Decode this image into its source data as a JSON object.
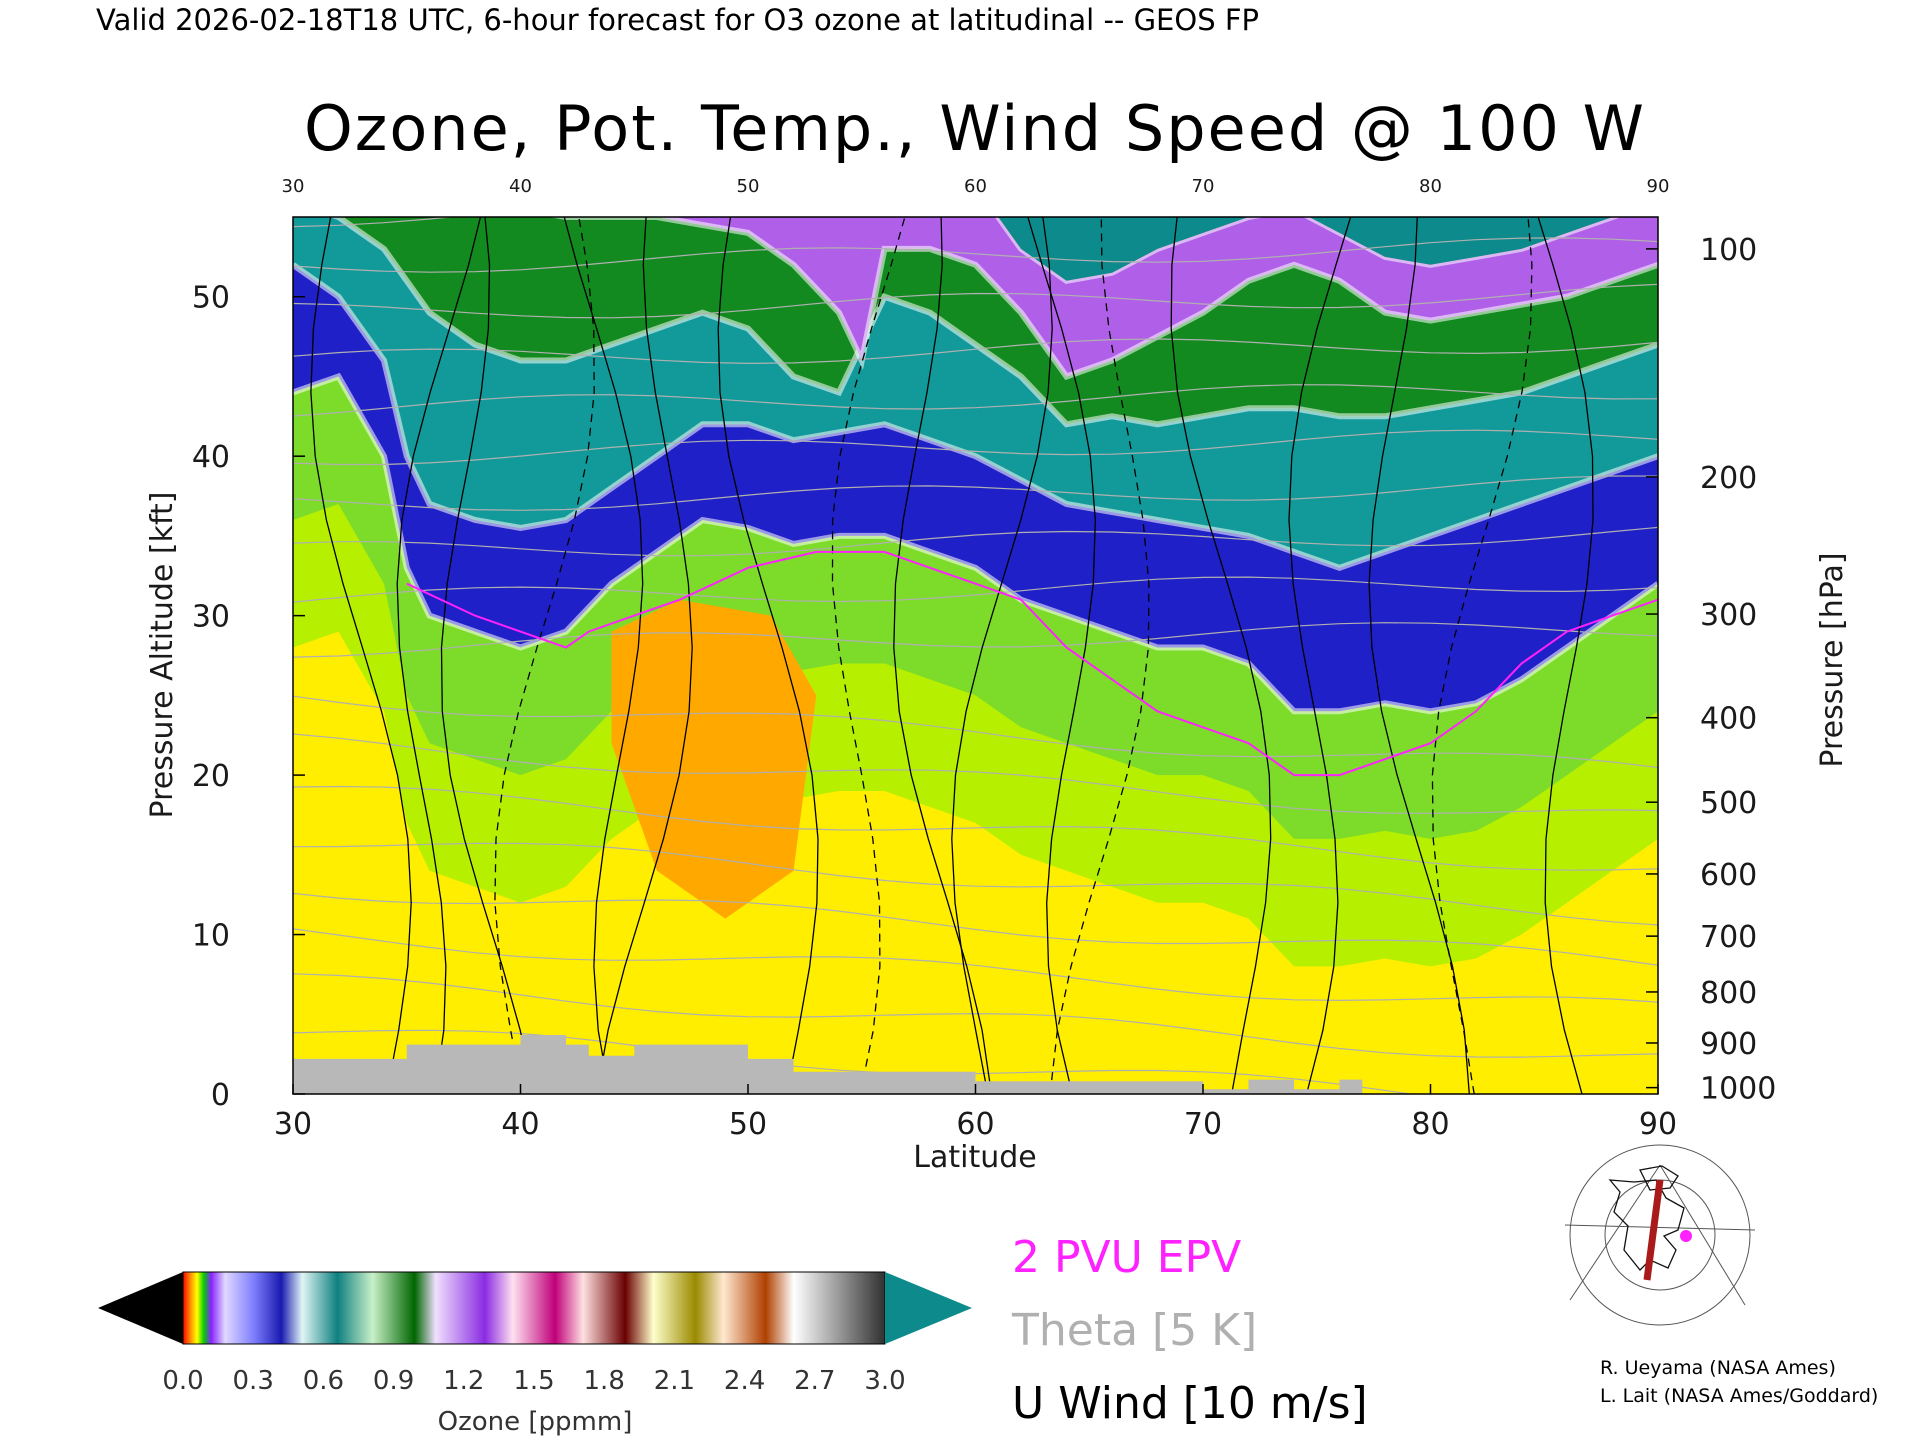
{
  "header": {
    "text": "Valid 2026-02-18T18 UTC, 6-hour forecast for O3 ozone at latitudinal -- GEOS FP"
  },
  "chart_data": {
    "type": "heatmap",
    "title": "Ozone, Pot. Temp., Wind Speed @ 100 W",
    "xlabel": "Latitude",
    "ylabel_left": "Pressure Altitude [kft]",
    "ylabel_right": "Pressure [hPa]",
    "xlim": [
      30,
      90
    ],
    "ylim": [
      0,
      55
    ],
    "x_ticks": [
      30,
      40,
      50,
      60,
      70,
      80,
      90
    ],
    "y_ticks_left": [
      0,
      10,
      20,
      30,
      40,
      50
    ],
    "y_ticks_right": [
      {
        "label": "100",
        "kft": 53.0
      },
      {
        "label": "200",
        "kft": 38.7
      },
      {
        "label": "300",
        "kft": 30.1
      },
      {
        "label": "400",
        "kft": 23.6
      },
      {
        "label": "500",
        "kft": 18.3
      },
      {
        "label": "600",
        "kft": 13.8
      },
      {
        "label": "700",
        "kft": 9.9
      },
      {
        "label": "800",
        "kft": 6.4
      },
      {
        "label": "900",
        "kft": 3.2
      },
      {
        "label": "1000",
        "kft": 0.4
      }
    ],
    "ozone_layer_boundaries_ppmm": [
      {
        "name": "0.6",
        "points": [
          [
            30,
            44
          ],
          [
            32,
            45
          ],
          [
            34,
            40
          ],
          [
            35,
            33
          ],
          [
            36,
            30
          ],
          [
            38,
            29
          ],
          [
            40,
            28
          ],
          [
            42,
            29
          ],
          [
            44,
            32
          ],
          [
            46,
            34
          ],
          [
            48,
            36
          ],
          [
            50,
            35.5
          ],
          [
            52,
            34.5
          ],
          [
            54,
            35
          ],
          [
            56,
            35
          ],
          [
            58,
            34
          ],
          [
            60,
            33
          ],
          [
            62,
            31
          ],
          [
            64,
            30
          ],
          [
            66,
            29
          ],
          [
            68,
            28
          ],
          [
            70,
            28
          ],
          [
            72,
            27
          ],
          [
            74,
            24
          ],
          [
            76,
            24
          ],
          [
            78,
            24.5
          ],
          [
            80,
            24
          ],
          [
            82,
            24.5
          ],
          [
            84,
            26
          ],
          [
            86,
            28
          ],
          [
            88,
            30
          ],
          [
            90,
            32
          ]
        ]
      },
      {
        "name": "1.2",
        "points": [
          [
            30,
            52
          ],
          [
            32,
            50
          ],
          [
            34,
            46
          ],
          [
            35,
            40
          ],
          [
            36,
            37
          ],
          [
            38,
            36
          ],
          [
            40,
            35.5
          ],
          [
            42,
            36
          ],
          [
            44,
            38
          ],
          [
            46,
            40
          ],
          [
            48,
            42
          ],
          [
            50,
            42
          ],
          [
            52,
            41
          ],
          [
            54,
            41.5
          ],
          [
            56,
            42
          ],
          [
            58,
            41
          ],
          [
            60,
            40
          ],
          [
            62,
            38.5
          ],
          [
            64,
            37
          ],
          [
            66,
            36.5
          ],
          [
            68,
            36
          ],
          [
            70,
            35.5
          ],
          [
            72,
            35
          ],
          [
            74,
            34
          ],
          [
            76,
            33
          ],
          [
            78,
            34
          ],
          [
            80,
            35
          ],
          [
            82,
            36
          ],
          [
            84,
            37
          ],
          [
            86,
            38
          ],
          [
            88,
            39
          ],
          [
            90,
            40
          ]
        ]
      },
      {
        "name": "1.8",
        "points": [
          [
            30,
            56
          ],
          [
            32,
            55
          ],
          [
            34,
            53
          ],
          [
            36,
            49
          ],
          [
            38,
            47
          ],
          [
            40,
            46
          ],
          [
            42,
            46
          ],
          [
            44,
            47
          ],
          [
            46,
            48
          ],
          [
            48,
            49
          ],
          [
            50,
            48
          ],
          [
            52,
            45
          ],
          [
            54,
            44
          ],
          [
            55,
            47
          ],
          [
            56,
            50
          ],
          [
            58,
            49
          ],
          [
            60,
            47
          ],
          [
            62,
            45
          ],
          [
            64,
            42
          ],
          [
            66,
            42.5
          ],
          [
            68,
            42
          ],
          [
            70,
            42.5
          ],
          [
            72,
            43
          ],
          [
            74,
            43
          ],
          [
            76,
            42.5
          ],
          [
            78,
            42.5
          ],
          [
            80,
            43
          ],
          [
            82,
            43.5
          ],
          [
            84,
            44
          ],
          [
            86,
            45
          ],
          [
            88,
            46
          ],
          [
            90,
            47
          ]
        ]
      },
      {
        "name": "2.4",
        "points": [
          [
            30,
            57
          ],
          [
            34,
            57
          ],
          [
            38,
            56
          ],
          [
            42,
            55
          ],
          [
            46,
            55
          ],
          [
            48,
            54.5
          ],
          [
            50,
            54
          ],
          [
            52,
            52
          ],
          [
            54,
            49
          ],
          [
            55,
            46
          ],
          [
            56,
            53
          ],
          [
            58,
            53
          ],
          [
            60,
            52
          ],
          [
            62,
            49
          ],
          [
            64,
            45
          ],
          [
            66,
            46
          ],
          [
            68,
            47.5
          ],
          [
            70,
            49
          ],
          [
            72,
            51
          ],
          [
            74,
            52
          ],
          [
            76,
            51
          ],
          [
            78,
            49
          ],
          [
            80,
            48.5
          ],
          [
            82,
            49
          ],
          [
            84,
            49.5
          ],
          [
            86,
            50
          ],
          [
            88,
            51
          ],
          [
            90,
            52
          ]
        ]
      },
      {
        "name": "3.0",
        "points": [
          [
            30,
            57
          ],
          [
            50,
            57
          ],
          [
            60,
            57
          ],
          [
            62,
            53
          ],
          [
            64,
            51
          ],
          [
            66,
            51.5
          ],
          [
            68,
            53
          ],
          [
            70,
            54
          ],
          [
            72,
            55
          ],
          [
            74,
            55.5
          ],
          [
            76,
            54
          ],
          [
            78,
            52.5
          ],
          [
            80,
            52
          ],
          [
            82,
            52.5
          ],
          [
            84,
            53
          ],
          [
            86,
            54
          ],
          [
            88,
            55
          ],
          [
            90,
            56
          ]
        ]
      }
    ],
    "tropospheric_ozone_maxima": [
      {
        "label": "orange core",
        "lat": 48,
        "kft": 20
      }
    ],
    "epv_2pvu_contour": [
      [
        35,
        32
      ],
      [
        38,
        30
      ],
      [
        40,
        29
      ],
      [
        42,
        28
      ],
      [
        43,
        29
      ],
      [
        45,
        30
      ],
      [
        47,
        31
      ],
      [
        50,
        33
      ],
      [
        53,
        34
      ],
      [
        56,
        34
      ],
      [
        58,
        33
      ],
      [
        60,
        32
      ],
      [
        62,
        31
      ],
      [
        64,
        28
      ],
      [
        66,
        26
      ],
      [
        68,
        24
      ],
      [
        70,
        23
      ],
      [
        72,
        22
      ],
      [
        74,
        20
      ],
      [
        76,
        20
      ],
      [
        80,
        22
      ],
      [
        82,
        24
      ],
      [
        84,
        27
      ],
      [
        86,
        29
      ],
      [
        88,
        30
      ],
      [
        90,
        31
      ]
    ],
    "legend": {
      "epv": "2 PVU EPV",
      "theta": "Theta [5 K]",
      "uwind": "U Wind [10 m/s]"
    },
    "colorbar": {
      "label": "Ozone [ppmm]",
      "tick_labels": [
        "0.0",
        "0.3",
        "0.6",
        "0.9",
        "1.2",
        "1.5",
        "1.8",
        "2.1",
        "2.4",
        "2.7",
        "3.0"
      ]
    }
  },
  "credits": {
    "line1": "R. Ueyama (NASA Ames)",
    "line2": "L. Lait (NASA Ames/Goddard)"
  },
  "colors": {
    "epv": "#ff22ff",
    "theta": "#b0b0b0",
    "uwind": "#000000",
    "terrain": "#b8b8b8",
    "cap": "#0c8a8c"
  }
}
